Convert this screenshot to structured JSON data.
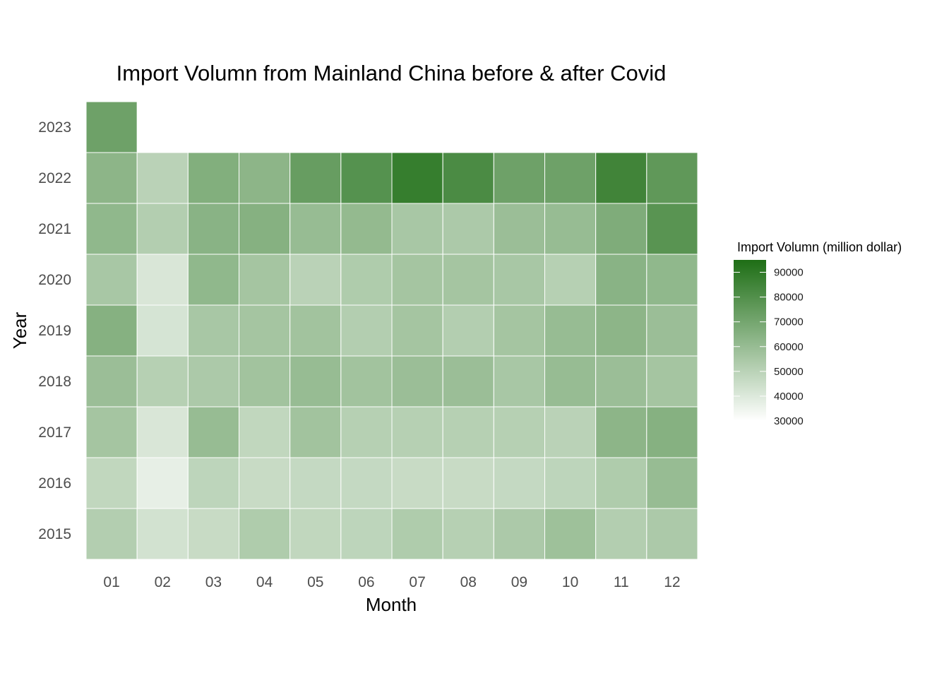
{
  "chart_data": {
    "type": "heatmap",
    "title": "Import Volumn from Mainland China before & after Covid",
    "xlabel": "Month",
    "ylabel": "Year",
    "x_categories": [
      "01",
      "02",
      "03",
      "04",
      "05",
      "06",
      "07",
      "08",
      "09",
      "10",
      "11",
      "12"
    ],
    "y_categories": [
      "2015",
      "2016",
      "2017",
      "2018",
      "2019",
      "2020",
      "2021",
      "2022",
      "2023"
    ],
    "values": [
      [
        52000,
        43000,
        46000,
        53000,
        48000,
        49000,
        53000,
        51000,
        54000,
        58000,
        52000,
        54000
      ],
      [
        48000,
        37000,
        49000,
        46000,
        47000,
        47000,
        46000,
        46000,
        47000,
        49000,
        53000,
        60000
      ],
      [
        56000,
        41000,
        60000,
        48000,
        57000,
        51000,
        51000,
        51000,
        51000,
        50000,
        63000,
        65000
      ],
      [
        59000,
        51000,
        54000,
        57000,
        60000,
        57000,
        59000,
        59000,
        55000,
        60000,
        59000,
        56000
      ],
      [
        65000,
        42000,
        55000,
        56000,
        57000,
        52000,
        56000,
        52000,
        56000,
        60000,
        63000,
        59000
      ],
      [
        55000,
        41000,
        62000,
        56000,
        50000,
        53000,
        56000,
        56000,
        55000,
        51000,
        64000,
        62000
      ],
      [
        62000,
        52000,
        64000,
        65000,
        60000,
        61000,
        55000,
        54000,
        59000,
        60000,
        67000,
        78000
      ],
      [
        63000,
        50000,
        66000,
        63000,
        74000,
        79000,
        88000,
        82000,
        72000,
        72000,
        85000,
        76000
      ],
      [
        72000,
        null,
        null,
        null,
        null,
        null,
        null,
        null,
        null,
        null,
        null,
        null
      ]
    ],
    "legend": {
      "title": "Import Volumn (million dollar)",
      "ticks": [
        90000,
        80000,
        70000,
        60000,
        50000,
        40000,
        30000
      ],
      "min": 30000,
      "max": 95000,
      "color_low": "#ffffff",
      "color_high": "#1e6e15",
      "placement": "right"
    },
    "grid": false
  }
}
